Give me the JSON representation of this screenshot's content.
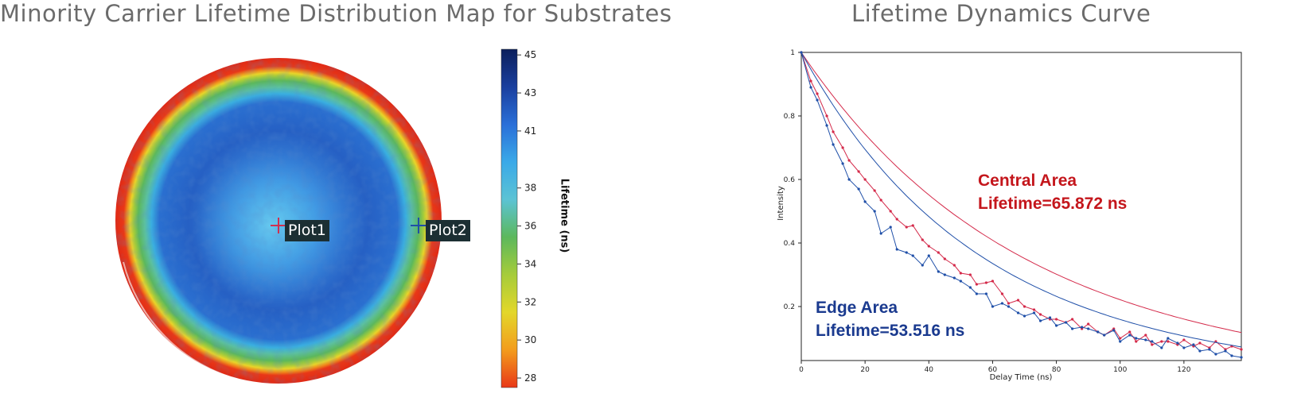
{
  "titles": {
    "map": "Minority Carrier Lifetime Distribution Map for Substrates",
    "curve": "Lifetime Dynamics Curve"
  },
  "map": {
    "markers": [
      {
        "label": "Plot1",
        "color": "#d03050"
      },
      {
        "label": "Plot2",
        "color": "#1f4fa8"
      }
    ],
    "colorbar": {
      "label": "Lifetime (ns)",
      "min": 27.5,
      "max": 45.3,
      "ticks": [
        "45",
        "43",
        "41",
        "38",
        "36",
        "34",
        "32",
        "30",
        "28"
      ],
      "colors": [
        "#0b1f5c",
        "#1a3f9e",
        "#2a6fd8",
        "#3aa9e8",
        "#5cc3d4",
        "#5cb85c",
        "#a6cc3a",
        "#e3d72a",
        "#f39c1c",
        "#e83818"
      ]
    }
  },
  "chart_data": [
    {
      "type": "heatmap",
      "title": "Minority Carrier Lifetime Distribution Map for Substrates",
      "colorbar_label": "Lifetime (ns)",
      "colorbar_ticks": [
        45,
        43,
        41,
        38,
        36,
        34,
        32,
        30,
        28
      ],
      "zones": [
        {
          "region": "center",
          "lifetime_ns": 38.5
        },
        {
          "region": "inner body",
          "lifetime_ns": 41.5
        },
        {
          "region": "outer ring",
          "lifetime_ns": 34.5
        },
        {
          "region": "edge",
          "lifetime_ns": 28
        }
      ],
      "points": [
        "Plot1",
        "Plot2"
      ]
    },
    {
      "type": "line",
      "title": "Lifetime Dynamics Curve",
      "xlabel": "Delay Time (ns)",
      "ylabel": "Intensity",
      "xlim": [
        0,
        138
      ],
      "ylim": [
        0.03,
        1.0
      ],
      "x_ticks": [
        0,
        20,
        40,
        60,
        80,
        100,
        120
      ],
      "y_ticks": [
        0.2,
        0.4,
        0.6,
        0.8,
        1
      ],
      "series": [
        {
          "color": "#d42a4a",
          "fit_lifetime_ns": 65.872,
          "x": [
            0,
            3,
            5,
            8,
            10,
            13,
            15,
            18,
            20,
            23,
            25,
            28,
            30,
            33,
            35,
            38,
            40,
            43,
            45,
            48,
            50,
            53,
            55,
            58,
            60,
            63,
            65,
            68,
            70,
            73,
            75,
            78,
            80,
            83,
            85,
            88,
            90,
            93,
            95,
            98,
            100,
            103,
            105,
            108,
            110,
            113,
            115,
            118,
            120,
            123,
            125,
            128,
            130,
            133,
            135,
            138
          ],
          "y": [
            1.0,
            0.91,
            0.87,
            0.8,
            0.75,
            0.7,
            0.66,
            0.625,
            0.6,
            0.565,
            0.535,
            0.5,
            0.475,
            0.45,
            0.455,
            0.41,
            0.39,
            0.37,
            0.35,
            0.33,
            0.305,
            0.3,
            0.27,
            0.275,
            0.28,
            0.24,
            0.21,
            0.22,
            0.2,
            0.19,
            0.175,
            0.16,
            0.16,
            0.15,
            0.16,
            0.13,
            0.145,
            0.12,
            0.11,
            0.13,
            0.1,
            0.12,
            0.09,
            0.11,
            0.08,
            0.09,
            0.09,
            0.08,
            0.095,
            0.075,
            0.085,
            0.07,
            0.09,
            0.065,
            0.075,
            0.065
          ]
        },
        {
          "color": "#1f4fa8",
          "fit_lifetime_ns": 53.516,
          "x": [
            0,
            3,
            5,
            8,
            10,
            13,
            15,
            18,
            20,
            23,
            25,
            28,
            30,
            33,
            35,
            38,
            40,
            43,
            45,
            48,
            50,
            53,
            55,
            58,
            60,
            63,
            65,
            68,
            70,
            73,
            75,
            78,
            80,
            83,
            85,
            88,
            90,
            93,
            95,
            98,
            100,
            103,
            105,
            108,
            110,
            113,
            115,
            118,
            120,
            123,
            125,
            128,
            130,
            133,
            135,
            138
          ],
          "y": [
            1.0,
            0.89,
            0.85,
            0.77,
            0.71,
            0.65,
            0.6,
            0.57,
            0.53,
            0.5,
            0.43,
            0.45,
            0.38,
            0.37,
            0.36,
            0.33,
            0.36,
            0.31,
            0.3,
            0.29,
            0.28,
            0.26,
            0.24,
            0.24,
            0.2,
            0.21,
            0.2,
            0.18,
            0.17,
            0.18,
            0.155,
            0.165,
            0.14,
            0.15,
            0.13,
            0.135,
            0.13,
            0.12,
            0.11,
            0.125,
            0.09,
            0.11,
            0.1,
            0.095,
            0.09,
            0.07,
            0.1,
            0.085,
            0.07,
            0.08,
            0.06,
            0.065,
            0.05,
            0.06,
            0.045,
            0.04
          ]
        }
      ],
      "annotations": [
        {
          "lines": [
            "Central Area",
            "Lifetime=65.872 ns"
          ],
          "color": "#c4161c"
        },
        {
          "lines": [
            "Edge Area",
            "Lifetime=53.516 ns"
          ],
          "color": "#1a3a8f"
        }
      ]
    }
  ]
}
